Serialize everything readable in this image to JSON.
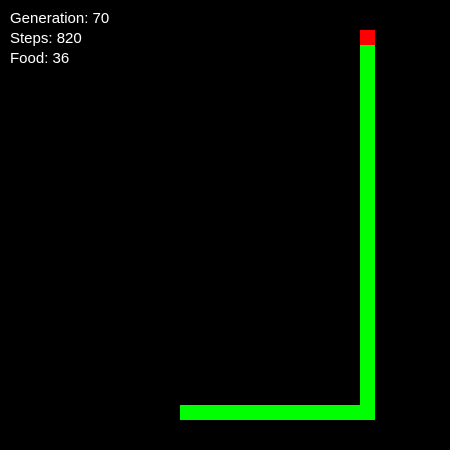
{
  "hud": {
    "generation_label": "Generation: 70",
    "steps_label": "Steps: 820",
    "food_label": "Food: 36"
  },
  "colors": {
    "background": "#000000",
    "snake_body": "#00ff00",
    "snake_head": "#ff0000",
    "hud_text": "#ffffff"
  }
}
